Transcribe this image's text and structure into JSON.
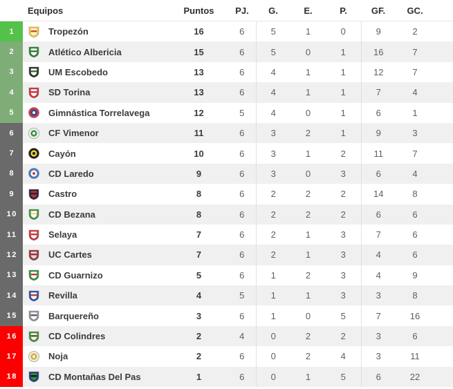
{
  "header": {
    "equipos": "Equipos",
    "puntos": "Puntos",
    "pj": "PJ.",
    "g": "G.",
    "e": "E.",
    "p": "P.",
    "gf": "GF.",
    "gc": "GC."
  },
  "zones": {
    "direct_promotion": "#54c14a",
    "playoff": "#7fad78",
    "mid": "#6a6a6a",
    "relegation": "#fb0000"
  },
  "colors": {
    "row_alt": "#f0f0f0",
    "row_base": "#ffffff",
    "divider": "#e0e0e0",
    "header_border": "#e8e8e8",
    "pos_text": "#ffffff",
    "team_text": "#3b3b3b",
    "value_text": "#5f5f5f",
    "strip_left": "#54c14a",
    "strip_right": "#e0e0e0"
  },
  "rows": [
    {
      "pos": "1",
      "zone": "direct_promotion",
      "team": "Tropezón",
      "crest": {
        "name": "tropezon-crest-icon",
        "shape": "shield",
        "primary": "#f0c843",
        "secondary": "#fdf4cd",
        "accent": "#d04a3a"
      },
      "puntos": "16",
      "pj": "6",
      "g": "5",
      "e": "1",
      "p": "0",
      "gf": "9",
      "gc": "2"
    },
    {
      "pos": "2",
      "zone": "playoff",
      "team": "Atlético Albericia",
      "crest": {
        "name": "atletico-albericia-crest-icon",
        "shape": "shield",
        "primary": "#2f7d33",
        "secondary": "#ffffff",
        "accent": "#2f7d33"
      },
      "puntos": "15",
      "pj": "6",
      "g": "5",
      "e": "0",
      "p": "1",
      "gf": "16",
      "gc": "7"
    },
    {
      "pos": "3",
      "zone": "playoff",
      "team": "UM Escobedo",
      "crest": {
        "name": "um-escobedo-crest-icon",
        "shape": "shield",
        "primary": "#26262b",
        "secondary": "#ffffff",
        "accent": "#2f7d33"
      },
      "puntos": "13",
      "pj": "6",
      "g": "4",
      "e": "1",
      "p": "1",
      "gf": "12",
      "gc": "7"
    },
    {
      "pos": "4",
      "zone": "playoff",
      "team": "SD Torina",
      "crest": {
        "name": "sd-torina-crest-icon",
        "shape": "shield",
        "primary": "#c8333a",
        "secondary": "#ffffff",
        "accent": "#c8333a"
      },
      "puntos": "13",
      "pj": "6",
      "g": "4",
      "e": "1",
      "p": "1",
      "gf": "7",
      "gc": "4"
    },
    {
      "pos": "5",
      "zone": "playoff",
      "team": "Gimnástica Torrelavega",
      "crest": {
        "name": "gimnastica-torrelavega-crest-icon",
        "shape": "circle",
        "primary": "#d8363c",
        "secondary": "#2c4a9e",
        "accent": "#ffffff"
      },
      "puntos": "12",
      "pj": "5",
      "g": "4",
      "e": "0",
      "p": "1",
      "gf": "6",
      "gc": "1"
    },
    {
      "pos": "6",
      "zone": "mid",
      "team": "CF Vimenor",
      "crest": {
        "name": "cf-vimenor-crest-icon",
        "shape": "circle",
        "primary": "#eef5ea",
        "secondary": "#3f8f3f",
        "accent": "#ffffff"
      },
      "puntos": "11",
      "pj": "6",
      "g": "3",
      "e": "2",
      "p": "1",
      "gf": "9",
      "gc": "3"
    },
    {
      "pos": "7",
      "zone": "mid",
      "team": "Cayón",
      "crest": {
        "name": "cayon-crest-icon",
        "shape": "circle",
        "primary": "#1d1d1d",
        "secondary": "#f3cf37",
        "accent": "#1d1d1d"
      },
      "puntos": "10",
      "pj": "6",
      "g": "3",
      "e": "1",
      "p": "2",
      "gf": "11",
      "gc": "7"
    },
    {
      "pos": "8",
      "zone": "mid",
      "team": "CD Laredo",
      "crest": {
        "name": "cd-laredo-crest-icon",
        "shape": "circle",
        "primary": "#4a79c0",
        "secondary": "#ffffff",
        "accent": "#cf3a3a"
      },
      "puntos": "9",
      "pj": "6",
      "g": "3",
      "e": "0",
      "p": "3",
      "gf": "6",
      "gc": "4"
    },
    {
      "pos": "9",
      "zone": "mid",
      "team": "Castro",
      "crest": {
        "name": "castro-crest-icon",
        "shape": "shield",
        "primary": "#2a2140",
        "secondary": "#b8322e",
        "accent": "#2a2140"
      },
      "puntos": "8",
      "pj": "6",
      "g": "2",
      "e": "2",
      "p": "2",
      "gf": "14",
      "gc": "8"
    },
    {
      "pos": "10",
      "zone": "mid",
      "team": "CD Bezana",
      "crest": {
        "name": "cd-bezana-crest-icon",
        "shape": "shield",
        "primary": "#3f8f3f",
        "secondary": "#ffffff",
        "accent": "#f3dd6b"
      },
      "puntos": "8",
      "pj": "6",
      "g": "2",
      "e": "2",
      "p": "2",
      "gf": "6",
      "gc": "6"
    },
    {
      "pos": "11",
      "zone": "mid",
      "team": "Selaya",
      "crest": {
        "name": "selaya-crest-icon",
        "shape": "shield",
        "primary": "#c8333a",
        "secondary": "#ffffff",
        "accent": "#c8333a"
      },
      "puntos": "7",
      "pj": "6",
      "g": "2",
      "e": "1",
      "p": "3",
      "gf": "7",
      "gc": "6"
    },
    {
      "pos": "12",
      "zone": "mid",
      "team": "UC Cartes",
      "crest": {
        "name": "uc-cartes-crest-icon",
        "shape": "shield",
        "primary": "#93313c",
        "secondary": "#e9d5d5",
        "accent": "#93313c"
      },
      "puntos": "7",
      "pj": "6",
      "g": "2",
      "e": "1",
      "p": "3",
      "gf": "4",
      "gc": "6"
    },
    {
      "pos": "13",
      "zone": "mid",
      "team": "CD Guarnizo",
      "crest": {
        "name": "cd-guarnizo-crest-icon",
        "shape": "shield",
        "primary": "#2f8f3a",
        "secondary": "#ffffff",
        "accent": "#c0392b"
      },
      "puntos": "5",
      "pj": "6",
      "g": "1",
      "e": "2",
      "p": "3",
      "gf": "4",
      "gc": "9"
    },
    {
      "pos": "14",
      "zone": "mid",
      "team": "Revilla",
      "crest": {
        "name": "revilla-crest-icon",
        "shape": "shield",
        "primary": "#2c4a9e",
        "secondary": "#ffffff",
        "accent": "#c0392b"
      },
      "puntos": "4",
      "pj": "5",
      "g": "1",
      "e": "1",
      "p": "3",
      "gf": "3",
      "gc": "8"
    },
    {
      "pos": "15",
      "zone": "mid",
      "team": "Barquereño",
      "crest": {
        "name": "barquereno-crest-icon",
        "shape": "shield",
        "primary": "#8d949c",
        "secondary": "#ffffff",
        "accent": "#555b63"
      },
      "puntos": "3",
      "pj": "6",
      "g": "1",
      "e": "0",
      "p": "5",
      "gf": "7",
      "gc": "16"
    },
    {
      "pos": "16",
      "zone": "relegation",
      "team": "CD Colindres",
      "crest": {
        "name": "cd-colindres-crest-icon",
        "shape": "shield",
        "primary": "#3f8f3f",
        "secondary": "#eef5e2",
        "accent": "#6b4f2a"
      },
      "puntos": "2",
      "pj": "4",
      "g": "0",
      "e": "2",
      "p": "2",
      "gf": "3",
      "gc": "6"
    },
    {
      "pos": "17",
      "zone": "relegation",
      "team": "Noja",
      "crest": {
        "name": "noja-crest-icon",
        "shape": "circle",
        "primary": "#f3ecd2",
        "secondary": "#cbb04b",
        "accent": "#ffffff"
      },
      "puntos": "2",
      "pj": "6",
      "g": "0",
      "e": "2",
      "p": "4",
      "gf": "3",
      "gc": "11"
    },
    {
      "pos": "18",
      "zone": "relegation",
      "team": "CD Montañas Del Pas",
      "crest": {
        "name": "cd-montanas-del-pas-crest-icon",
        "shape": "shield",
        "primary": "#253a83",
        "secondary": "#2f8f3a",
        "accent": "#10131c"
      },
      "puntos": "1",
      "pj": "6",
      "g": "0",
      "e": "1",
      "p": "5",
      "gf": "6",
      "gc": "22"
    }
  ]
}
